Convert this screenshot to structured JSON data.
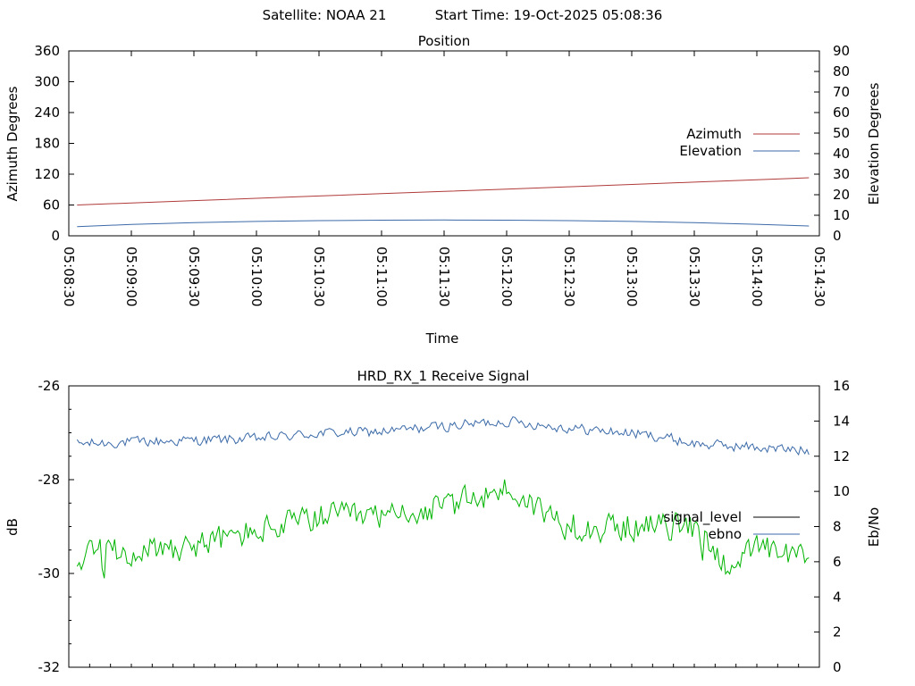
{
  "header": {
    "satellite_text": "Satellite: NOAA 21",
    "start_time_text": "Start Time: 19-Oct-2025 05:08:36"
  },
  "chart_data": [
    {
      "type": "line",
      "title": "Position",
      "xlabel": "Time",
      "ylabel": "Azimuth Degrees",
      "y2label": "Elevation Degrees",
      "xlim": [
        "05:08:30",
        "05:14:30"
      ],
      "ylim": [
        0,
        360
      ],
      "y2lim": [
        0,
        90
      ],
      "x_tick_labels": [
        "05:08:30",
        "05:09:00",
        "05:09:30",
        "05:10:00",
        "05:10:30",
        "05:11:00",
        "05:11:30",
        "05:12:00",
        "05:12:30",
        "05:13:00",
        "05:13:30",
        "05:14:00",
        "05:14:30"
      ],
      "y_tick_labels": [
        "0",
        "60",
        "120",
        "180",
        "240",
        "300",
        "360"
      ],
      "y2_tick_labels": [
        "0",
        "10",
        "20",
        "30",
        "40",
        "50",
        "60",
        "70",
        "80",
        "90"
      ],
      "legend_position": "right",
      "grid": false,
      "series": [
        {
          "name": "Azimuth",
          "axis": "left",
          "color": "#b03a3a",
          "x": [
            "05:08:34",
            "05:09:00",
            "05:09:30",
            "05:10:00",
            "05:10:30",
            "05:11:00",
            "05:11:30",
            "05:12:00",
            "05:12:30",
            "05:13:00",
            "05:13:30",
            "05:14:00",
            "05:14:25"
          ],
          "y": [
            60,
            64,
            68.5,
            73,
            77.5,
            82,
            86.5,
            91,
            95.5,
            100,
            104.5,
            109,
            113
          ]
        },
        {
          "name": "Elevation",
          "axis": "right",
          "color": "#3b6aa8",
          "x": [
            "05:08:34",
            "05:09:00",
            "05:09:30",
            "05:10:00",
            "05:10:30",
            "05:11:00",
            "05:11:30",
            "05:12:00",
            "05:12:30",
            "05:13:00",
            "05:13:30",
            "05:14:00",
            "05:14:25"
          ],
          "y": [
            4.5,
            5.5,
            6.4,
            7.0,
            7.4,
            7.6,
            7.7,
            7.6,
            7.4,
            7.0,
            6.4,
            5.6,
            4.8
          ]
        }
      ]
    },
    {
      "type": "line",
      "title": "HRD_RX_1 Receive Signal",
      "ylabel": "dB",
      "y2label": "Eb/No",
      "ylim": [
        -32,
        -26
      ],
      "y2lim": [
        0,
        16
      ],
      "y_tick_labels": [
        "-26",
        "-28",
        "-30",
        "-32"
      ],
      "y2_tick_labels": [
        "0",
        "2",
        "4",
        "6",
        "8",
        "10",
        "12",
        "14",
        "16"
      ],
      "legend_position": "right",
      "grid": false,
      "series": [
        {
          "name": "signal_level",
          "axis": "left",
          "color": "#000000",
          "x": [],
          "y": []
        },
        {
          "name": "ebno",
          "axis": "right",
          "color": "#3b6aa8",
          "x": [
            "05:08:34",
            "05:09:00",
            "05:09:30",
            "05:10:00",
            "05:10:30",
            "05:11:00",
            "05:11:30",
            "05:12:00",
            "05:12:30",
            "05:13:00",
            "05:13:15",
            "05:13:30",
            "05:14:00",
            "05:14:25"
          ],
          "y": [
            12.7,
            12.8,
            12.9,
            13.0,
            13.3,
            13.4,
            13.7,
            14.0,
            13.6,
            13.3,
            13.1,
            12.7,
            12.5,
            12.3
          ]
        },
        {
          "name": "",
          "axis": "left",
          "color": "#00b400",
          "x": [
            "05:08:34",
            "05:09:00",
            "05:09:30",
            "05:10:00",
            "05:10:30",
            "05:11:00",
            "05:11:30",
            "05:12:00",
            "05:12:30",
            "05:13:00",
            "05:13:30",
            "05:13:45",
            "05:14:00",
            "05:14:25"
          ],
          "y": [
            -29.6,
            -29.5,
            -29.4,
            -29.1,
            -28.8,
            -28.8,
            -28.6,
            -28.2,
            -29.0,
            -29.0,
            -29.0,
            -29.8,
            -29.5,
            -29.7
          ]
        }
      ]
    }
  ]
}
